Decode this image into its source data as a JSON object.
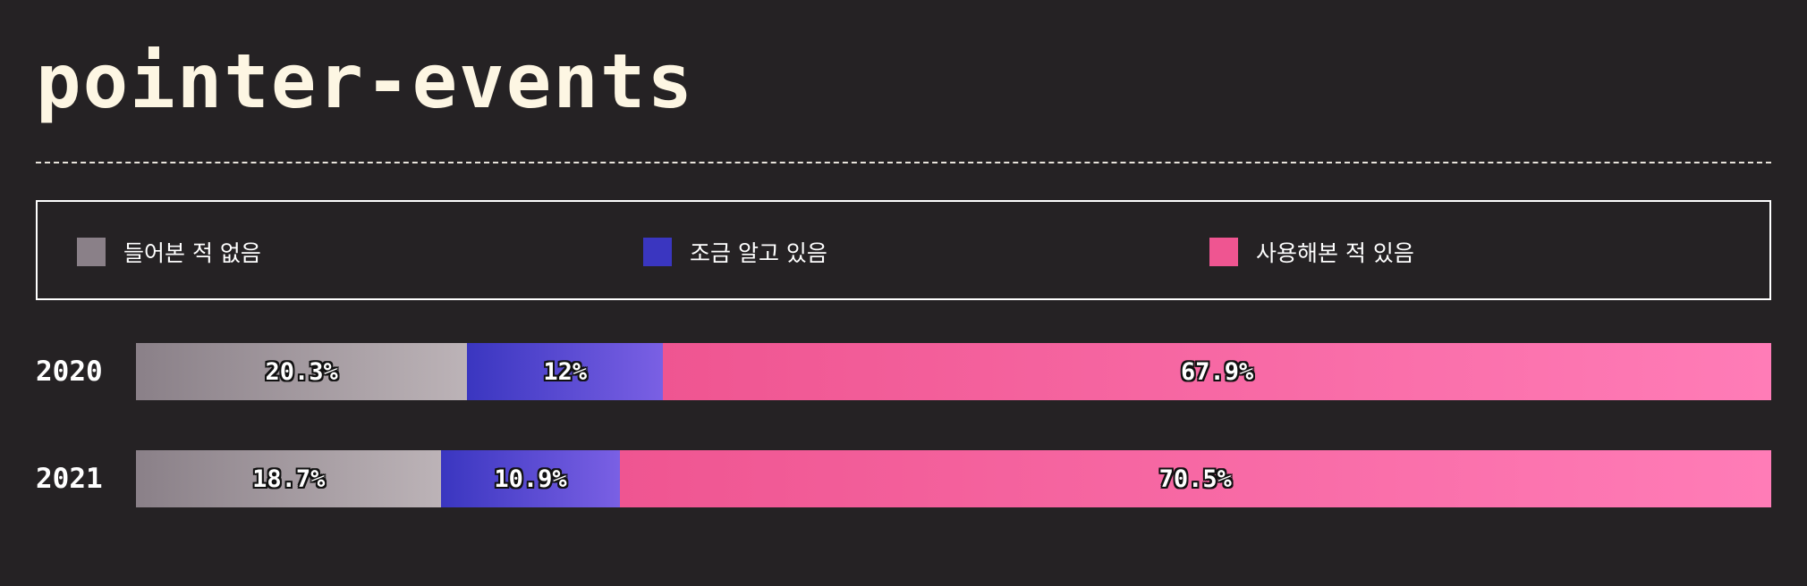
{
  "title": "pointer-events",
  "colors": {
    "background": "#252224",
    "never_heard": "#8a8088",
    "know_a_little": "#3a36c0",
    "have_used": "#ef5591"
  },
  "legend": [
    {
      "label": "들어본 적 없음",
      "color": "#8a8088"
    },
    {
      "label": "조금 알고 있음",
      "color": "#3a36c0"
    },
    {
      "label": "사용해본 적 있음",
      "color": "#ef5591"
    }
  ],
  "chart_data": {
    "type": "bar",
    "orientation": "horizontal",
    "stacked": true,
    "normalized": true,
    "title": "pointer-events",
    "categories": [
      "2020",
      "2021"
    ],
    "series": [
      {
        "name": "들어본 적 없음",
        "values": [
          20.3,
          18.7
        ],
        "labels": [
          "20.3%",
          "18.7%"
        ]
      },
      {
        "name": "조금 알고 있음",
        "values": [
          12,
          10.9
        ],
        "labels": [
          "12%",
          "10.9%"
        ]
      },
      {
        "name": "사용해본 적 있음",
        "values": [
          67.9,
          70.5
        ],
        "labels": [
          "67.9%",
          "70.5%"
        ]
      }
    ],
    "legend_position": "top",
    "grid": false
  }
}
